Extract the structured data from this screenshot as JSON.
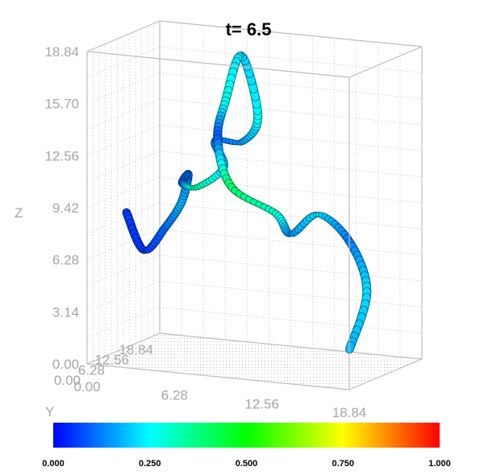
{
  "chart_data": {
    "type": "3d-line",
    "title": "t= 6.5",
    "zlabel": "Z",
    "ylabel": "Y",
    "xlabel": "",
    "ticks": {
      "z": [
        "0.00",
        "3.14",
        "6.28",
        "9.42",
        "12.56",
        "15.70",
        "18.84"
      ],
      "x": [
        "0.00",
        "6.28",
        "12.56",
        "18.84"
      ],
      "y": [
        "0.00",
        "6.28",
        "12.56",
        "18.84"
      ]
    },
    "xlim": [
      0,
      18.84
    ],
    "ylim": [
      0,
      18.84
    ],
    "zlim": [
      0,
      18.84
    ],
    "grid": true,
    "colorbar": {
      "range": [
        0,
        1
      ],
      "labels": [
        "0.000",
        "0.250",
        "0.500",
        "0.750",
        "1.000"
      ],
      "colormap": [
        "#0000ff",
        "#00ffff",
        "#00ff00",
        "#ffff00",
        "#ff0000"
      ]
    },
    "series": [
      {
        "points": [
          {
            "x": 2.0,
            "y": 3.0,
            "z": 9.0,
            "c": 0.06
          },
          {
            "x": 3.2,
            "y": 3.2,
            "z": 6.8,
            "c": 0.05
          },
          {
            "x": 4.7,
            "y": 3.3,
            "z": 8.3,
            "c": 0.1
          },
          {
            "x": 5.8,
            "y": 3.6,
            "z": 9.9,
            "c": 0.18
          },
          {
            "x": 6.1,
            "y": 4.2,
            "z": 11.5,
            "c": 0.12
          },
          {
            "x": 5.6,
            "y": 4.6,
            "z": 10.9,
            "c": 0.1
          },
          {
            "x": 6.5,
            "y": 5.2,
            "z": 10.7,
            "c": 0.35
          },
          {
            "x": 8.3,
            "y": 5.4,
            "z": 12.0,
            "c": 0.22
          },
          {
            "x": 7.6,
            "y": 5.9,
            "z": 13.5,
            "c": 0.12
          },
          {
            "x": 9.5,
            "y": 6.1,
            "z": 13.6,
            "c": 0.15
          },
          {
            "x": 10.5,
            "y": 6.4,
            "z": 15.2,
            "c": 0.25
          },
          {
            "x": 9.2,
            "y": 6.8,
            "z": 18.7,
            "c": 0.2
          },
          {
            "x": 7.9,
            "y": 7.4,
            "z": 15.8,
            "c": 0.28
          },
          {
            "x": 7.2,
            "y": 7.9,
            "z": 13.4,
            "c": 0.08
          },
          {
            "x": 8.2,
            "y": 7.8,
            "z": 10.6,
            "c": 0.4
          },
          {
            "x": 11.5,
            "y": 7.4,
            "z": 9.3,
            "c": 0.3
          },
          {
            "x": 12.7,
            "y": 7.0,
            "z": 8.2,
            "c": 0.14
          },
          {
            "x": 14.6,
            "y": 7.3,
            "z": 9.5,
            "c": 0.22
          },
          {
            "x": 16.8,
            "y": 7.5,
            "z": 8.0,
            "c": 0.12
          },
          {
            "x": 18.0,
            "y": 7.6,
            "z": 5.1,
            "c": 0.22
          },
          {
            "x": 16.7,
            "y": 7.8,
            "z": 1.5,
            "c": 0.18
          }
        ]
      }
    ]
  }
}
